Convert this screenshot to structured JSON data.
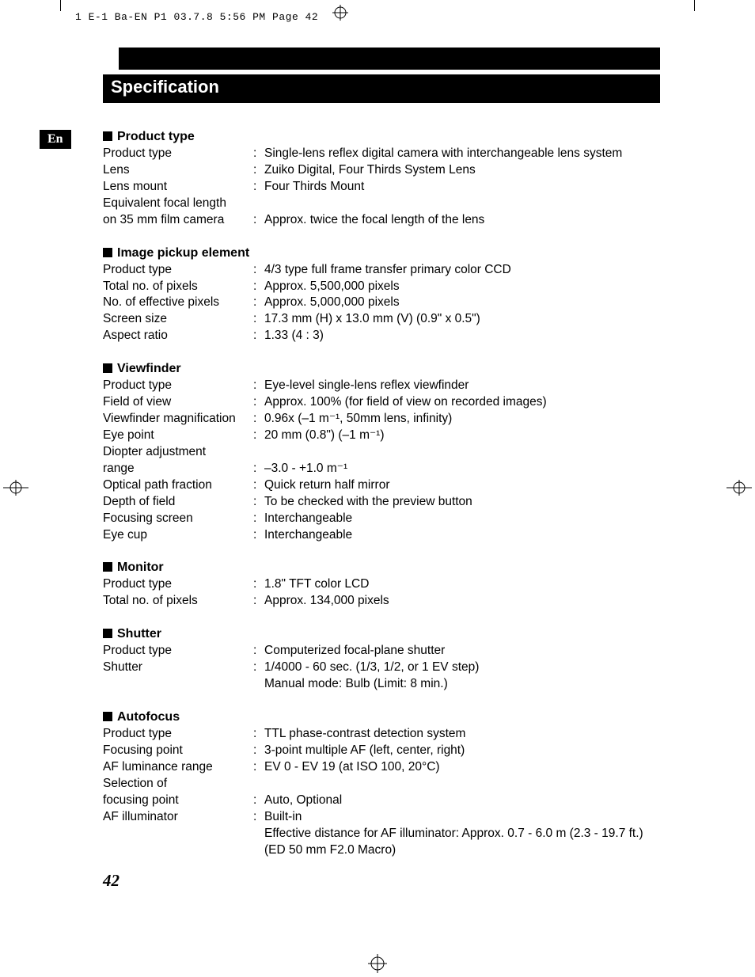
{
  "header_line": "1 E-1 Ba-EN P1  03.7.8 5:56 PM  Page 42",
  "title": "Specification",
  "lang_tab": "En",
  "page_number": "42",
  "sections": [
    {
      "heading": "Product type",
      "rows": [
        {
          "label": "Product type",
          "value": "Single-lens reflex digital camera with interchangeable lens system"
        },
        {
          "label": "Lens",
          "value": "Zuiko Digital, Four Thirds System Lens"
        },
        {
          "label": "Lens mount",
          "value": "Four Thirds Mount"
        },
        {
          "label": "Equivalent focal length",
          "value": ""
        },
        {
          "label": "on 35 mm film camera",
          "value": "Approx. twice the focal length of the lens"
        }
      ]
    },
    {
      "heading": "Image pickup element",
      "rows": [
        {
          "label": "Product type",
          "value": "4/3 type full frame transfer primary color CCD"
        },
        {
          "label": "Total no. of pixels",
          "value": "Approx. 5,500,000 pixels"
        },
        {
          "label": "No. of effective pixels",
          "value": "Approx. 5,000,000 pixels"
        },
        {
          "label": "Screen size",
          "value": "17.3 mm (H) x 13.0 mm (V) (0.9\" x 0.5\")"
        },
        {
          "label": "Aspect ratio",
          "value": "1.33 (4 : 3)"
        }
      ]
    },
    {
      "heading": "Viewfinder",
      "rows": [
        {
          "label": "Product type",
          "value": "Eye-level single-lens reflex viewfinder"
        },
        {
          "label": "Field of view",
          "value": "Approx. 100% (for field of view on recorded images)"
        },
        {
          "label": "Viewfinder magnification",
          "value": "0.96x (–1 m⁻¹, 50mm lens, infinity)"
        },
        {
          "label": "Eye point",
          "value": "20 mm (0.8\") (–1 m⁻¹)"
        },
        {
          "label": "Diopter adjustment",
          "value": ""
        },
        {
          "label": "range",
          "value": "–3.0 - +1.0 m⁻¹"
        },
        {
          "label": "Optical path fraction",
          "value": "Quick return half mirror"
        },
        {
          "label": "Depth of field",
          "value": "To be checked with the preview button"
        },
        {
          "label": "Focusing screen",
          "value": "Interchangeable"
        },
        {
          "label": "Eye cup",
          "value": "Interchangeable"
        }
      ]
    },
    {
      "heading": "Monitor",
      "rows": [
        {
          "label": "Product type",
          "value": "1.8\" TFT color LCD"
        },
        {
          "label": "Total no. of pixels",
          "value": "Approx. 134,000 pixels"
        }
      ]
    },
    {
      "heading": "Shutter",
      "rows": [
        {
          "label": "Product type",
          "value": "Computerized focal-plane shutter"
        },
        {
          "label": "Shutter",
          "value": "1/4000 - 60 sec. (1/3, 1/2, or 1 EV step)"
        },
        {
          "label": "",
          "value": "Manual mode: Bulb (Limit: 8 min.)",
          "nocolon": true
        }
      ]
    },
    {
      "heading": "Autofocus",
      "rows": [
        {
          "label": "Product type",
          "value": "TTL phase-contrast detection system"
        },
        {
          "label": "Focusing point",
          "value": "3-point multiple AF (left, center, right)"
        },
        {
          "label": "AF luminance range",
          "value": "EV 0 - EV 19 (at ISO 100, 20°C)"
        },
        {
          "label": "Selection of",
          "value": ""
        },
        {
          "label": "focusing point",
          "value": "Auto, Optional"
        },
        {
          "label": "AF illuminator",
          "value": "Built-in"
        },
        {
          "label": "",
          "value": "Effective distance for AF illuminator: Approx. 0.7 - 6.0 m (2.3 - 19.7 ft.)",
          "nocolon": true
        },
        {
          "label": "",
          "value": "(ED 50 mm F2.0 Macro)",
          "nocolon": true
        }
      ]
    }
  ]
}
